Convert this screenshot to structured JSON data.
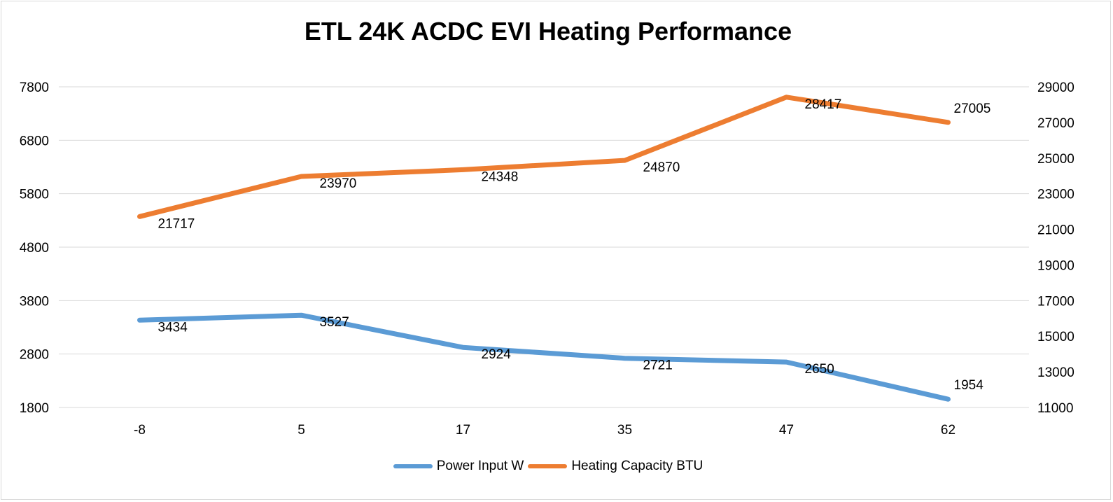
{
  "chart_data": {
    "type": "line",
    "title": "ETL 24K ACDC EVI Heating Performance",
    "categories": [
      "-8",
      "5",
      "17",
      "35",
      "47",
      "62"
    ],
    "y_left": {
      "ticks": [
        "7800",
        "6800",
        "5800",
        "4800",
        "3800",
        "2800",
        "1800"
      ],
      "range": [
        1800,
        7800
      ]
    },
    "y_right": {
      "ticks": [
        "29000",
        "27000",
        "25000",
        "23000",
        "21000",
        "19000",
        "17000",
        "15000",
        "13000",
        "11000"
      ],
      "range": [
        11000,
        29000
      ]
    },
    "grid": true,
    "legend_position": "bottom",
    "series": [
      {
        "name": "Power Input W",
        "axis": "left",
        "color": "#5b9bd5",
        "values": [
          3434,
          3527,
          2924,
          2721,
          2650,
          1954
        ],
        "labels": [
          "3434",
          "3527",
          "2924",
          "2721",
          "2650",
          "1954"
        ]
      },
      {
        "name": "Heating Capacity BTU",
        "axis": "right",
        "color": "#ed7d31",
        "values": [
          21717,
          23970,
          24348,
          24870,
          28417,
          27005
        ],
        "labels": [
          "21717",
          "23970",
          "24348",
          "24870",
          "28417",
          "27005"
        ]
      }
    ]
  }
}
